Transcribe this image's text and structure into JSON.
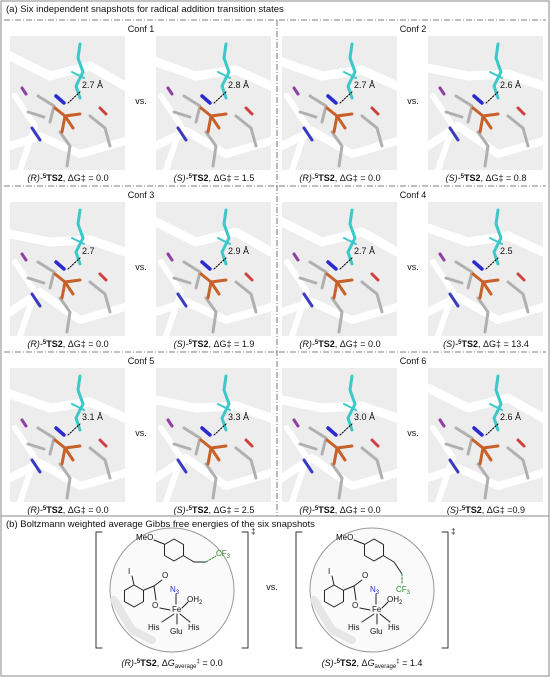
{
  "part_a": {
    "title": "(a) Six independent snapshots for radical addition transition states",
    "vs": "vs.",
    "confs": [
      {
        "label": "Conf 1",
        "left": {
          "distance": "2.7 Å",
          "stereo": "(R)-",
          "spin": "5",
          "name": "TS2",
          "energy": ", ΔG‡ = 0.0"
        },
        "right": {
          "distance": "2.8 Å",
          "stereo": "(S)-",
          "spin": "5",
          "name": "TS2",
          "energy": ", ΔG‡ = 1.5"
        }
      },
      {
        "label": "Conf 2",
        "left": {
          "distance": "2.7 Å",
          "stereo": "(R)-",
          "spin": "5",
          "name": "TS2",
          "energy": ", ΔG‡ = 0.0"
        },
        "right": {
          "distance": "2.6 Å",
          "stereo": "(S)-",
          "spin": "5",
          "name": "TS2",
          "energy": ", ΔG‡ = 0.8"
        }
      },
      {
        "label": "Conf 3",
        "left": {
          "distance": "2.7",
          "stereo": "(R)-",
          "spin": "5",
          "name": "TS2",
          "energy": ", ΔG‡ = 0.0"
        },
        "right": {
          "distance": "2.9 Å",
          "stereo": "(S)-",
          "spin": "5",
          "name": "TS2",
          "energy": ", ΔG‡ = 1.9"
        }
      },
      {
        "label": "Conf 4",
        "left": {
          "distance": "2.7 Å",
          "stereo": "(R)-",
          "spin": "5",
          "name": "TS2",
          "energy": ", ΔG‡ = 0.0"
        },
        "right": {
          "distance": "2.5",
          "stereo": "(S)-",
          "spin": "5",
          "name": "TS2",
          "energy": ", ΔG‡ = 13.4"
        }
      },
      {
        "label": "Conf 5",
        "left": {
          "distance": "3.1 Å",
          "stereo": "(R)-",
          "spin": "5",
          "name": "TS2",
          "energy": ", ΔG‡ = 0.0"
        },
        "right": {
          "distance": "3.3 Å",
          "stereo": "(S)-",
          "spin": "5",
          "name": "TS2",
          "energy": ", ΔG‡ = 2.5"
        }
      },
      {
        "label": "Conf 6",
        "left": {
          "distance": "3.0 Å",
          "stereo": "(R)-",
          "spin": "5",
          "name": "TS2",
          "energy": ", ΔG‡ = 0.0"
        },
        "right": {
          "distance": "2.6 Å",
          "stereo": "(S)-",
          "spin": "5",
          "name": "TS2",
          "energy": ", ΔG‡ =0.9"
        }
      }
    ]
  },
  "part_b": {
    "title": "(b) Boltzmann weighted average Gibbs free energies of the six snapshots",
    "vs": "vs.",
    "structures": [
      {
        "labels": {
          "meo": "MeO",
          "cf": "CF",
          "cf_sub": "3",
          "n": "N",
          "n_sub": "3",
          "carbonyl_o": "O",
          "o": "O",
          "oh": "OH",
          "oh_sub": "2",
          "fe": "Fe",
          "his1": "His",
          "glu": "Glu",
          "his2": "His",
          "iodo": "I",
          "dagger": "‡"
        },
        "caption": {
          "stereo": "(R)-",
          "spin": "5",
          "name": "TS2",
          "delta": ", Δ",
          "g": "G",
          "sub": "average",
          "dagger": "‡",
          "energy": " = 0.0"
        }
      },
      {
        "labels": {
          "meo": "MeO",
          "cf": "CF",
          "cf_sub": "3",
          "n": "N",
          "n_sub": "3",
          "carbonyl_o": "O",
          "o": "O",
          "oh": "OH",
          "oh_sub": "2",
          "fe": "Fe",
          "his1": "His",
          "glu": "Glu",
          "his2": "His",
          "iodo": "I",
          "dagger": "‡"
        },
        "caption": {
          "stereo": "(S)-",
          "spin": "5",
          "name": "TS2",
          "delta": ", Δ",
          "g": "G",
          "sub": "average",
          "dagger": "‡",
          "energy": " = 1.4"
        }
      }
    ]
  }
}
